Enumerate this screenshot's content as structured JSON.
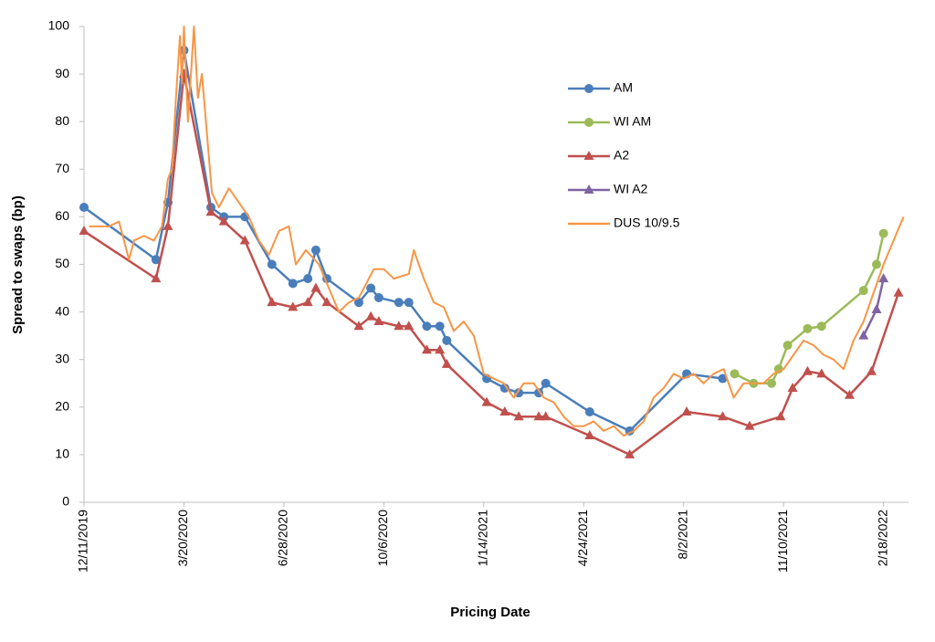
{
  "chart_data": {
    "type": "line",
    "xlabel": "Pricing Date",
    "ylabel": "Spread to swaps (bp)",
    "xlim": [
      "12/11/2019",
      "3/15/2022"
    ],
    "xticks": [
      "12/11/2019",
      "3/20/2020",
      "6/28/2020",
      "10/6/2020",
      "1/14/2021",
      "4/24/2021",
      "8/2/2021",
      "11/10/2021",
      "2/18/2022"
    ],
    "ylim": [
      0,
      100
    ],
    "yticks": [
      0,
      10,
      20,
      30,
      40,
      50,
      60,
      70,
      80,
      90,
      100
    ],
    "grid": false,
    "legend": "right",
    "series": [
      {
        "name": "AM",
        "color": "#4a7ebb",
        "marker": "circle",
        "x": [
          "12/11/2019",
          "2/21/2020",
          "3/4/2020",
          "3/20/2020",
          "4/16/2020",
          "4/29/2020",
          "5/20/2020",
          "6/16/2020",
          "7/7/2020",
          "7/22/2020",
          "7/30/2020",
          "8/10/2020",
          "9/11/2020",
          "9/23/2020",
          "10/1/2020",
          "10/21/2020",
          "10/31/2020",
          "11/18/2020",
          "12/1/2020",
          "12/8/2020",
          "1/17/2021",
          "2/4/2021",
          "2/18/2021",
          "3/10/2021",
          "3/17/2021",
          "4/30/2021",
          "6/9/2021",
          "8/5/2021",
          "9/10/2021"
        ],
        "values": [
          62,
          51,
          63,
          95,
          62,
          60,
          60,
          50,
          46,
          47,
          53,
          47,
          42,
          45,
          43,
          42,
          42,
          37,
          37,
          34,
          26,
          24,
          23,
          23,
          25,
          19,
          15,
          27,
          26
        ]
      },
      {
        "name": "WI AM",
        "color": "#9bbb59",
        "marker": "circle",
        "x": [
          "9/22/2021",
          "10/11/2021",
          "10/29/2021",
          "11/5/2021",
          "11/14/2021",
          "12/4/2021",
          "12/18/2021",
          "1/29/2022",
          "2/11/2022",
          "2/18/2022"
        ],
        "values": [
          27,
          25,
          25,
          28,
          33,
          36.5,
          37,
          44.5,
          50,
          56.5
        ]
      },
      {
        "name": "A2",
        "color": "#c0504d",
        "marker": "triangle",
        "x": [
          "12/11/2019",
          "2/21/2020",
          "3/4/2020",
          "3/20/2020",
          "4/16/2020",
          "4/29/2020",
          "5/20/2020",
          "6/16/2020",
          "7/7/2020",
          "7/22/2020",
          "7/30/2020",
          "8/10/2020",
          "9/11/2020",
          "9/23/2020",
          "10/1/2020",
          "10/21/2020",
          "10/31/2020",
          "11/18/2020",
          "12/1/2020",
          "12/8/2020",
          "1/17/2021",
          "2/4/2021",
          "2/18/2021",
          "3/10/2021",
          "3/17/2021",
          "4/30/2021",
          "6/9/2021",
          "8/5/2021",
          "9/10/2021",
          "10/7/2021",
          "11/7/2021",
          "11/19/2021",
          "12/4/2021",
          "12/18/2021",
          "1/15/2022",
          "2/6/2022",
          "3/5/2022"
        ],
        "values": [
          57,
          47,
          58,
          90,
          61,
          59,
          55,
          42,
          41,
          42,
          45,
          42,
          37,
          39,
          38,
          37,
          37,
          32,
          32,
          29,
          21,
          19,
          18,
          18,
          18,
          14,
          10,
          19,
          18,
          16,
          18,
          24,
          27.5,
          27,
          22.5,
          27.5,
          44
        ]
      },
      {
        "name": "WI A2",
        "color": "#8064a2",
        "marker": "triangle",
        "x": [
          "1/29/2022",
          "2/11/2022",
          "2/18/2022"
        ],
        "values": [
          35,
          40.5,
          47
        ]
      },
      {
        "name": "DUS 10/9.5",
        "color": "#f79646",
        "marker": "none",
        "x": [
          "12/16/2019",
          "1/5/2020",
          "1/15/2020",
          "1/25/2020",
          "1/30/2020",
          "2/9/2020",
          "2/19/2020",
          "2/27/2020",
          "3/4/2020",
          "3/8/2020",
          "3/12/2020",
          "3/16/2020",
          "3/18/2020",
          "3/20/2020",
          "3/24/2020",
          "3/30/2020",
          "4/3/2020",
          "4/7/2020",
          "4/13/2020",
          "4/17/2020",
          "4/24/2020",
          "5/4/2020",
          "5/14/2020",
          "5/24/2020",
          "6/3/2020",
          "6/13/2020",
          "6/23/2020",
          "7/3/2020",
          "7/10/2020",
          "7/20/2020",
          "8/2/2020",
          "8/12/2020",
          "8/22/2020",
          "9/1/2020",
          "9/11/2020",
          "9/21/2020",
          "9/26/2020",
          "10/6/2020",
          "10/16/2020",
          "10/31/2020",
          "11/5/2020",
          "11/15/2020",
          "11/25/2020",
          "12/5/2020",
          "12/15/2020",
          "12/25/2020",
          "1/4/2021",
          "1/14/2021",
          "1/24/2021",
          "2/3/2021",
          "2/13/2021",
          "2/23/2021",
          "3/5/2021",
          "3/15/2021",
          "3/25/2021",
          "4/4/2021",
          "4/14/2021",
          "4/24/2021",
          "5/4/2021",
          "5/14/2021",
          "5/24/2021",
          "6/3/2021",
          "6/13/2021",
          "6/23/2021",
          "7/3/2021",
          "7/13/2021",
          "7/23/2021",
          "8/2/2021",
          "8/12/2021",
          "8/22/2021",
          "9/1/2021",
          "9/11/2021",
          "9/21/2021",
          "10/1/2021",
          "10/11/2021",
          "10/21/2021",
          "10/31/2021",
          "11/10/2021",
          "11/20/2021",
          "11/30/2021",
          "12/10/2021",
          "12/20/2021",
          "12/30/2021",
          "1/9/2022",
          "1/19/2022",
          "1/29/2022",
          "2/8/2022",
          "2/18/2022",
          "2/28/2022",
          "3/10/2022"
        ],
        "values": [
          58,
          58,
          59,
          51,
          55,
          56,
          55,
          58,
          68,
          70,
          85,
          98,
          88,
          100,
          80,
          100,
          85,
          90,
          75,
          65,
          62,
          66,
          63,
          60,
          55,
          52,
          57,
          58,
          50,
          53,
          50,
          45,
          40,
          42,
          43,
          47,
          49,
          49,
          47,
          48,
          53,
          47,
          42,
          41,
          36,
          38,
          35,
          27,
          26,
          25,
          22,
          25,
          25,
          22,
          21,
          18,
          16,
          16,
          17,
          15,
          16,
          14,
          15,
          17,
          22,
          24,
          27,
          26,
          27,
          25,
          27,
          28,
          22,
          25,
          25,
          25,
          27,
          28,
          31,
          34,
          33,
          31,
          30,
          28,
          34,
          38,
          44,
          50,
          55,
          60
        ]
      }
    ]
  }
}
